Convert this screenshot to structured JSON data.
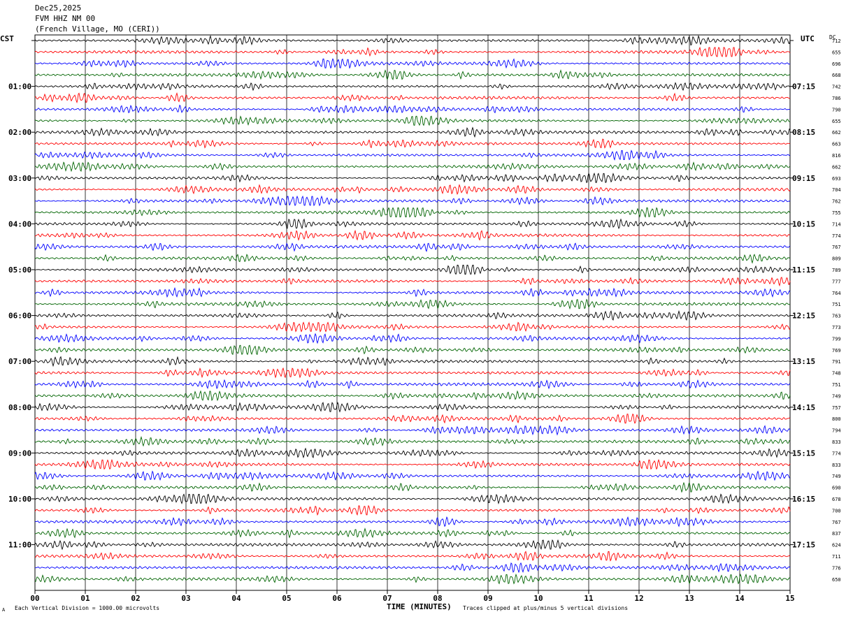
{
  "header": {
    "date": "Dec25,2025",
    "station": "FVM HHZ NM 00",
    "location": "(French Village, MO (CERI))"
  },
  "left_timezone": "CST",
  "right_timezone": "UTC",
  "dc_label": "DC",
  "footer": {
    "division_note": "Each Vertical Division = 1000.00 microvolts",
    "xlabel": "TIME (MINUTES)",
    "clip_note": "Traces clipped at plus/minus 5 vertical divisions",
    "corner_mark": "A"
  },
  "colors": {
    "trace_cycle": [
      "#000000",
      "#ff0000",
      "#0000ff",
      "#006400"
    ],
    "grid": "#000000"
  },
  "chart_data": {
    "type": "line",
    "xlabel": "TIME (MINUTES)",
    "xlim": [
      0,
      15
    ],
    "x_ticks": [
      "00",
      "01",
      "02",
      "03",
      "04",
      "05",
      "06",
      "07",
      "08",
      "09",
      "10",
      "11",
      "12",
      "13",
      "14",
      "15"
    ],
    "rows_per_hour": 4,
    "left_hour_labels": [
      "",
      "01:00",
      "02:00",
      "03:00",
      "04:00",
      "05:00",
      "06:00",
      "07:00",
      "08:00",
      "09:00",
      "10:00",
      "11:00"
    ],
    "right_hour_labels": [
      "",
      "07:15",
      "08:15",
      "09:15",
      "10:15",
      "11:15",
      "12:15",
      "13:15",
      "14:15",
      "15:15",
      "16:15",
      "17:15"
    ],
    "dc_offsets": [
      "712",
      "655",
      "696",
      "668",
      "742",
      "786",
      "790",
      "655",
      "662",
      "663",
      "816",
      "662",
      "693",
      "704",
      "762",
      "755",
      "714",
      "774",
      "767",
      "809",
      "789",
      "777",
      "764",
      "751",
      "763",
      "773",
      "799",
      "769",
      "791",
      "748",
      "751",
      "749",
      "757",
      "800",
      "794",
      "833",
      "774",
      "833",
      "749",
      "690",
      "678",
      "700",
      "767",
      "837",
      "624",
      "711",
      "776",
      "650"
    ]
  }
}
